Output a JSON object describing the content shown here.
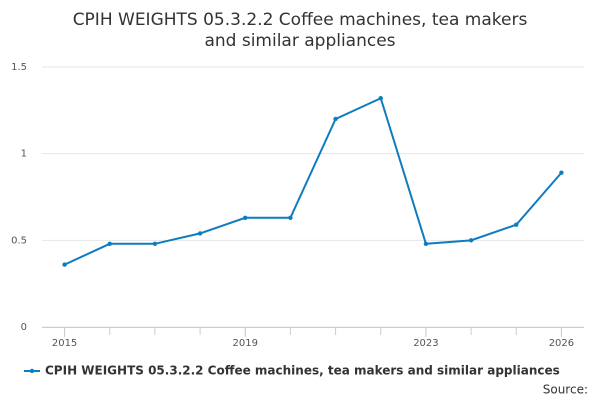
{
  "chart_data": {
    "type": "line",
    "title": "CPIH WEIGHTS 05.3.2.2 Coffee machines, tea makers and similar appliances",
    "x": [
      2015,
      2016,
      2017,
      2018,
      2019,
      2020,
      2021,
      2022,
      2023,
      2024,
      2025,
      2026
    ],
    "series": [
      {
        "name": "CPIH WEIGHTS 05.3.2.2 Coffee machines, tea makers and similar appliances",
        "color": "#0f7cbf",
        "values": [
          0.36,
          0.48,
          0.48,
          0.54,
          0.63,
          0.63,
          1.2,
          1.32,
          0.48,
          0.5,
          0.59,
          0.89
        ]
      }
    ],
    "xlim": [
      2014.5,
      2026.5
    ],
    "xticks": [
      2015,
      2019,
      2023,
      2026
    ],
    "ylim": [
      0,
      1.5
    ],
    "yticks": [
      0,
      0.5,
      1,
      1.5
    ],
    "grid": true,
    "legend": "bottom",
    "source": "Source:"
  }
}
